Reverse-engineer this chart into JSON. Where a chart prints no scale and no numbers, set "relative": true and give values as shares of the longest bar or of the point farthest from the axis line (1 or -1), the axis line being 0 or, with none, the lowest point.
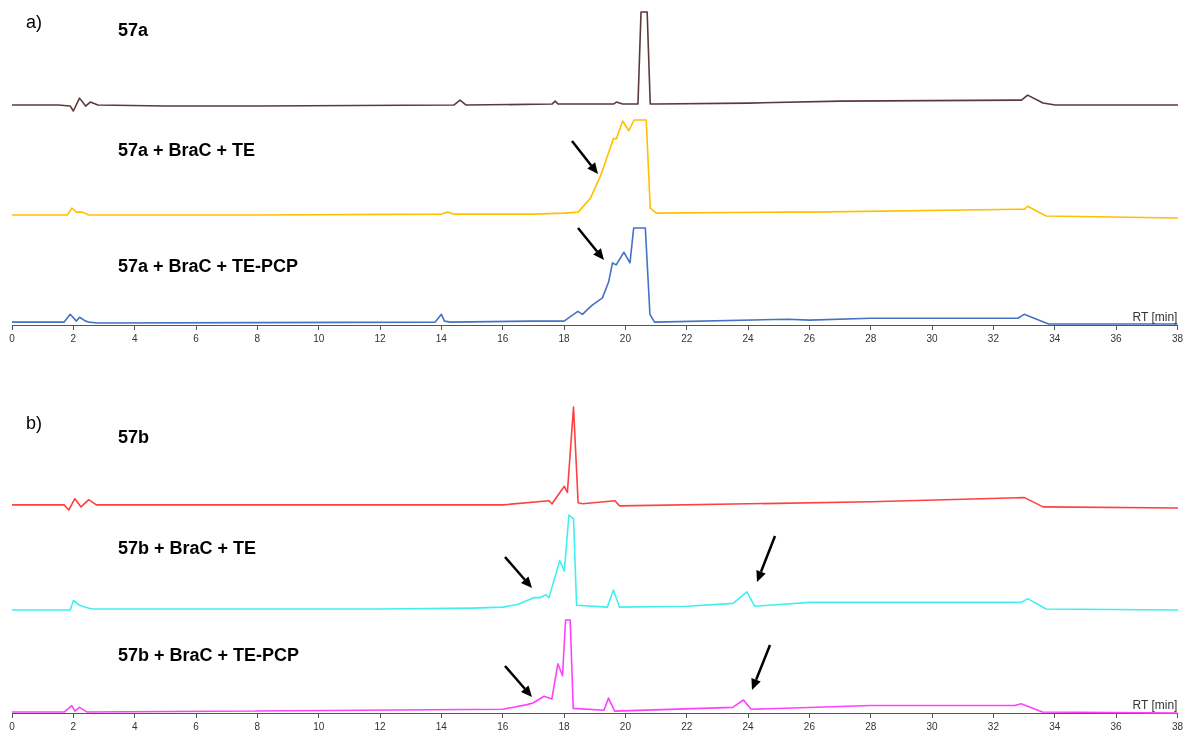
{
  "chart_data": [
    {
      "type": "line",
      "title": "57a",
      "annotations": [
        "a)"
      ],
      "relative": true,
      "tick_labels": false,
      "xlim": [
        0,
        38
      ],
      "color": "#5b3a3a",
      "x": [
        0,
        1.5,
        1.9,
        2.0,
        2.2,
        2.4,
        2.55,
        2.8,
        5,
        8,
        14.4,
        14.6,
        14.8,
        17.6,
        17.7,
        17.8,
        19.6,
        19.7,
        19.9,
        20.4,
        20.5,
        20.7,
        20.8,
        21,
        24,
        27,
        32.9,
        33.1,
        33.6,
        34,
        38
      ],
      "values": [
        0.06,
        0.06,
        0.05,
        0,
        0.13,
        0.05,
        0.09,
        0.06,
        0.05,
        0.05,
        0.06,
        0.11,
        0.06,
        0.07,
        0.1,
        0.07,
        0.07,
        0.09,
        0.07,
        0.07,
        1,
        1,
        0.07,
        0.07,
        0.08,
        0.1,
        0.11,
        0.16,
        0.08,
        0.06,
        0.06
      ]
    },
    {
      "type": "line",
      "title": "57a + BraC + TE",
      "relative": true,
      "tick_labels": false,
      "xlim": [
        0,
        38
      ],
      "color": "#ffc000",
      "x": [
        0,
        1.8,
        1.95,
        2.1,
        2.3,
        2.5,
        8,
        14,
        14.2,
        14.4,
        17,
        18,
        18.45,
        18.85,
        19.18,
        19.45,
        19.6,
        19.7,
        19.9,
        20.1,
        20.27,
        20.67,
        20.8,
        21,
        25.3,
        26,
        33,
        33.1,
        33.7,
        38
      ],
      "values": [
        0.03,
        0.03,
        0.1,
        0.06,
        0.06,
        0.03,
        0.03,
        0.04,
        0.06,
        0.04,
        0.04,
        0.05,
        0.06,
        0.2,
        0.43,
        0.67,
        0.81,
        0.81,
        0.99,
        0.89,
        1,
        1,
        0.1,
        0.05,
        0.06,
        0.06,
        0.09,
        0.12,
        0.02,
        0
      ]
    },
    {
      "type": "line",
      "title": "57a + BraC + TE-PCP",
      "relative": true,
      "tick_labels": "x",
      "xlim": [
        0,
        38
      ],
      "xticks": [
        0,
        2,
        4,
        6,
        8,
        10,
        12,
        14,
        16,
        18,
        20,
        22,
        24,
        26,
        28,
        30,
        32,
        34,
        36,
        38
      ],
      "xlabel": "RT [min]",
      "color": "#4472c4",
      "x": [
        0,
        1.7,
        1.9,
        2.1,
        2.2,
        2.4,
        2.5,
        2.8,
        13.8,
        14,
        14.1,
        14.3,
        17,
        18,
        18.45,
        18.6,
        18.9,
        19.25,
        19.45,
        19.58,
        19.7,
        19.95,
        20.15,
        20.27,
        20.65,
        20.8,
        20.95,
        25.3,
        26,
        28,
        32.8,
        33,
        33.8,
        38
      ],
      "values": [
        0.03,
        0.03,
        0.11,
        0.04,
        0.08,
        0.04,
        0.03,
        0.02,
        0.03,
        0.11,
        0.04,
        0.03,
        0.04,
        0.04,
        0.14,
        0.11,
        0.2,
        0.28,
        0.44,
        0.64,
        0.62,
        0.75,
        0.64,
        1,
        1,
        0.11,
        0.03,
        0.06,
        0.05,
        0.07,
        0.07,
        0.11,
        0.01,
        0.01
      ]
    },
    {
      "type": "line",
      "title": "57b",
      "annotations": [
        "b)"
      ],
      "relative": true,
      "tick_labels": false,
      "xlim": [
        0,
        38
      ],
      "color": "#ff4040",
      "x": [
        0,
        1.7,
        1.85,
        2.05,
        2.25,
        2.5,
        2.75,
        16,
        17.5,
        17.6,
        18.0,
        18.1,
        18.3,
        18.45,
        18.6,
        19.65,
        19.8,
        24,
        28,
        33,
        33.6,
        38
      ],
      "values": [
        0.05,
        0.05,
        0,
        0.11,
        0.03,
        0.1,
        0.05,
        0.05,
        0.09,
        0.06,
        0.23,
        0.17,
        1,
        0.07,
        0.06,
        0.09,
        0.04,
        0.06,
        0.08,
        0.12,
        0.03,
        0.02
      ]
    },
    {
      "type": "line",
      "title": "57b + BraC + TE",
      "relative": true,
      "tick_labels": false,
      "xlim": [
        0,
        38
      ],
      "color": "#40f0f0",
      "x": [
        0,
        1.9,
        2.0,
        2.2,
        2.4,
        2.6,
        12,
        15,
        16,
        16.5,
        17,
        17.2,
        17.4,
        17.5,
        17.85,
        18.0,
        18.15,
        18.3,
        18.4,
        19.4,
        19.6,
        19.8,
        22,
        23.5,
        23.95,
        24.2,
        26,
        30,
        32.9,
        33.1,
        33.7,
        38
      ],
      "values": [
        0,
        0,
        0.1,
        0.05,
        0.03,
        0.01,
        0.01,
        0.02,
        0.03,
        0.06,
        0.13,
        0.13,
        0.16,
        0.13,
        0.52,
        0.41,
        1,
        0.96,
        0.05,
        0.03,
        0.21,
        0.03,
        0.04,
        0.07,
        0.19,
        0.04,
        0.08,
        0.08,
        0.08,
        0.12,
        0.01,
        0
      ]
    },
    {
      "type": "line",
      "title": "57b + BraC + TE-PCP",
      "relative": true,
      "tick_labels": "x",
      "xlim": [
        0,
        38
      ],
      "xticks": [
        0,
        2,
        4,
        6,
        8,
        10,
        12,
        14,
        16,
        18,
        20,
        22,
        24,
        26,
        28,
        30,
        32,
        34,
        36,
        38
      ],
      "xlabel": "RT [min]",
      "color": "#ff40ff",
      "x": [
        0,
        1.7,
        1.95,
        2.05,
        2.2,
        2.45,
        16,
        16.8,
        17.0,
        17.35,
        17.6,
        17.8,
        17.95,
        18.05,
        18.2,
        18.3,
        19.3,
        19.45,
        19.65,
        23.5,
        23.85,
        24.1,
        28,
        32.7,
        32.9,
        33.6,
        38
      ],
      "values": [
        0.01,
        0.01,
        0.08,
        0.02,
        0.06,
        0.01,
        0.04,
        0.09,
        0.11,
        0.18,
        0.15,
        0.53,
        0.4,
        1,
        1,
        0.05,
        0.03,
        0.16,
        0.02,
        0.06,
        0.14,
        0.04,
        0.08,
        0.08,
        0.1,
        0.01,
        0
      ]
    }
  ]
}
